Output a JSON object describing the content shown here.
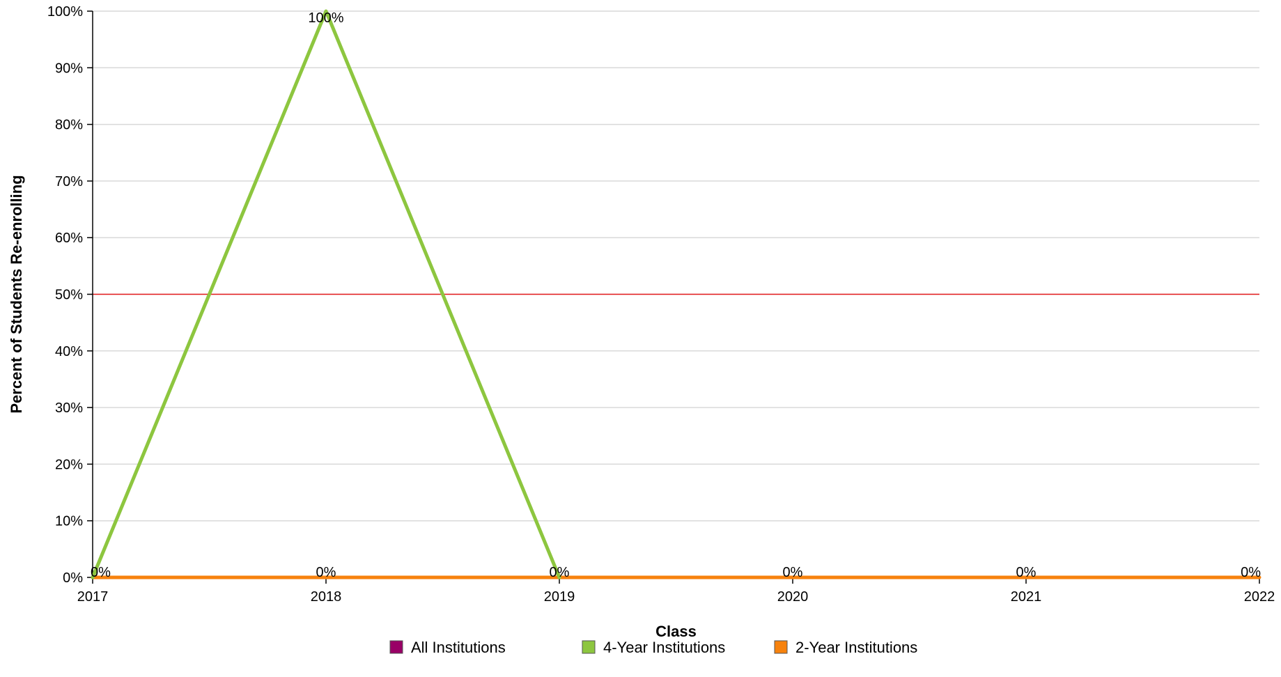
{
  "chart_data": {
    "type": "line",
    "x": [
      "2017",
      "2018",
      "2019",
      "2020",
      "2021",
      "2022"
    ],
    "series": [
      {
        "name": "All Institutions",
        "color": "#990066",
        "values": [
          0,
          0,
          0,
          0,
          0,
          0
        ]
      },
      {
        "name": "4-Year Institutions",
        "color": "#8dc63f",
        "values": [
          0,
          100,
          0,
          null,
          null,
          null
        ]
      },
      {
        "name": "2-Year Institutions",
        "color": "#f7820d",
        "values": [
          0,
          0,
          0,
          0,
          0,
          0
        ]
      }
    ],
    "data_labels": [
      {
        "x": "2017",
        "text": "0%"
      },
      {
        "x": "2018",
        "text": "100%"
      },
      {
        "x": "2018",
        "text": "0%"
      },
      {
        "x": "2019",
        "text": "0%"
      },
      {
        "x": "2020",
        "text": "0%"
      },
      {
        "x": "2021",
        "text": "0%"
      },
      {
        "x": "2022",
        "text": "0%"
      }
    ],
    "reference_line": {
      "value": 50,
      "color": "#e31a1c"
    },
    "xlabel": "Class",
    "ylabel": "Percent of Students Re-enrolling",
    "ylim": [
      0,
      100
    ],
    "yticks": [
      "0%",
      "10%",
      "20%",
      "30%",
      "40%",
      "50%",
      "60%",
      "70%",
      "80%",
      "90%",
      "100%"
    ],
    "grid": true,
    "legend_position": "bottom"
  }
}
